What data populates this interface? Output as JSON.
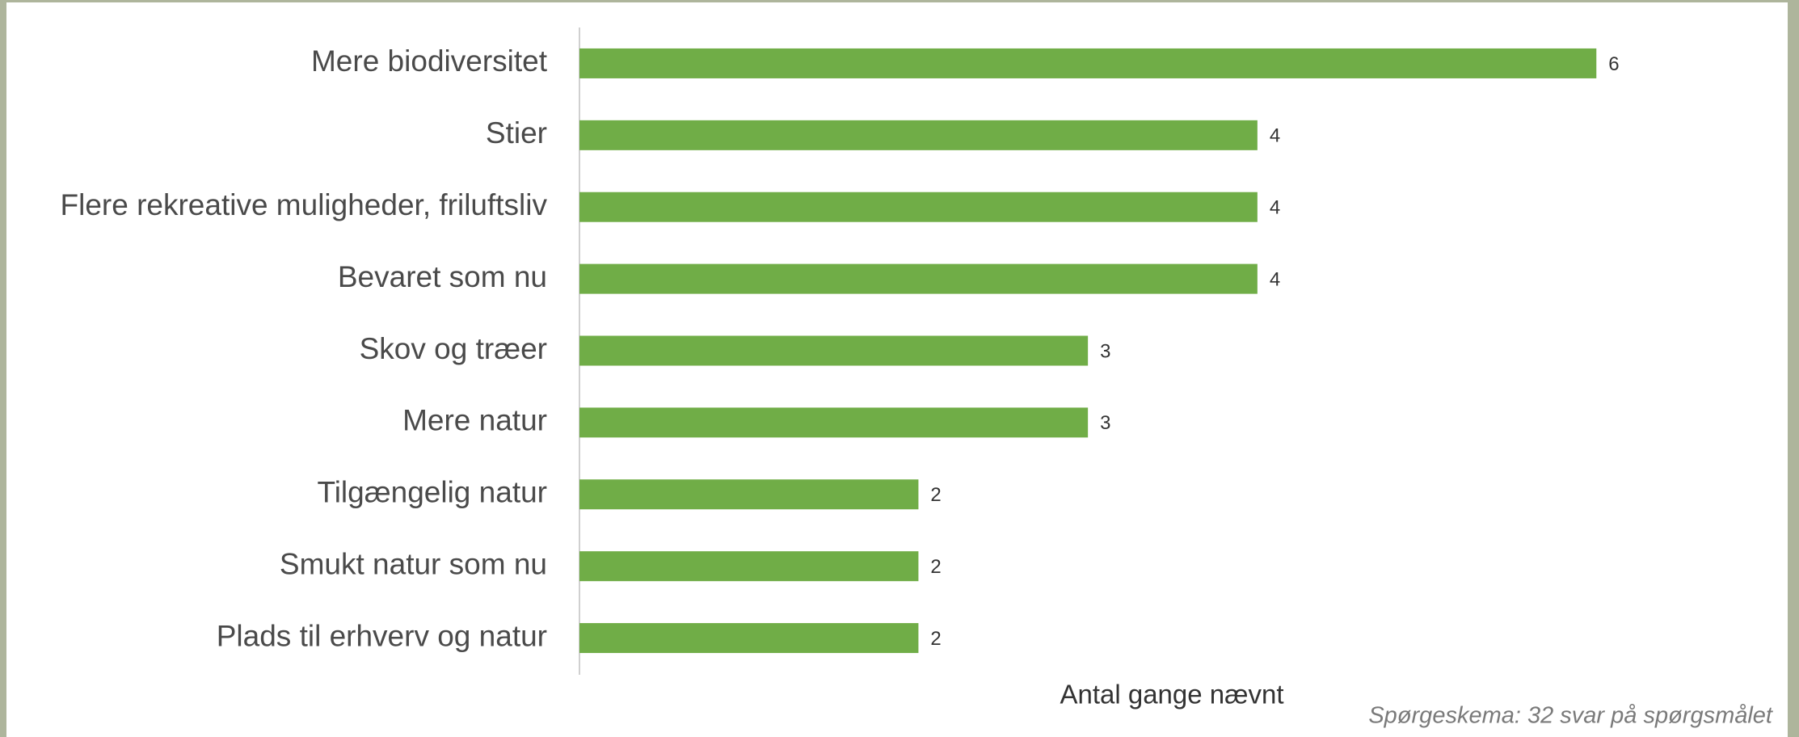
{
  "chart_data": {
    "type": "bar",
    "orientation": "horizontal",
    "categories": [
      "Mere biodiversitet",
      "Stier",
      "Flere rekreative muligheder, friluftsliv",
      "Bevaret som nu",
      "Skov og træer",
      "Mere natur",
      "Tilgængelig natur",
      "Smukt natur som nu",
      "Plads til erhverv og natur"
    ],
    "values": [
      6,
      4,
      4,
      4,
      3,
      3,
      2,
      2,
      2
    ],
    "color": "#70ad47",
    "xlim": [
      0,
      7
    ],
    "xlabel": "Antal gange nævnt",
    "note": "Spørgeskema: 32 svar på spørgsmålet"
  }
}
